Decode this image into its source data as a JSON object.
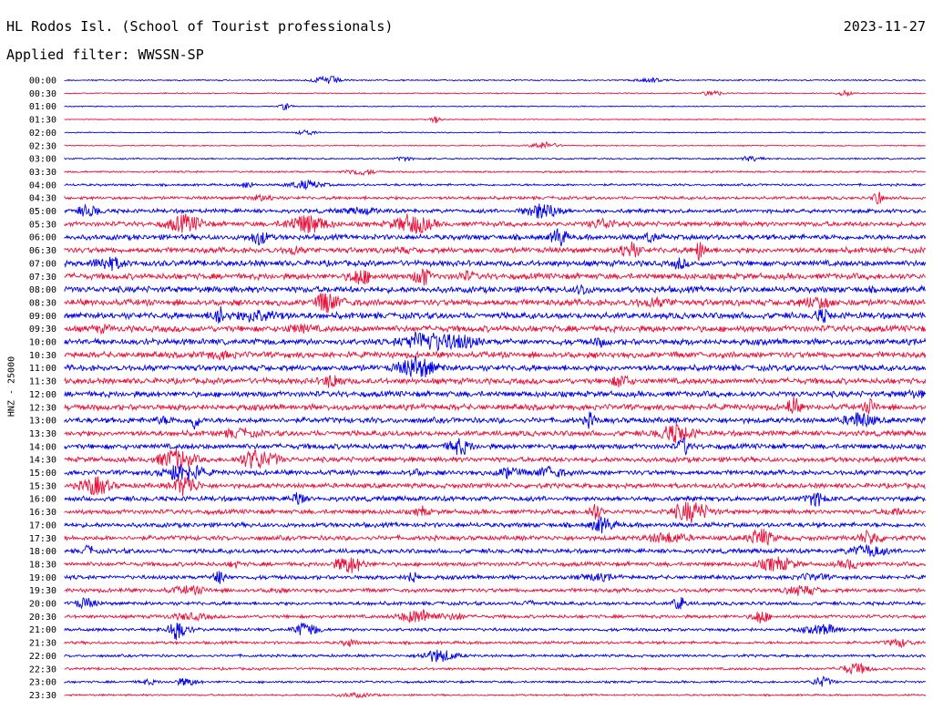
{
  "header": {
    "station_title": "HL Rodos Isl. (School of Tourist professionals)",
    "date": "2023-11-27",
    "filter_text": "Applied filter: WWSSN-SP",
    "channel_label": "HNZ - 25000"
  },
  "chart_data": {
    "type": "helicorder",
    "title": "HL Rodos Isl. (School of Tourist professionals)",
    "date": "2023-11-27",
    "ylabel": "HNZ - 25000",
    "row_labels": [
      "00:00",
      "00:30",
      "01:00",
      "01:30",
      "02:00",
      "02:30",
      "03:00",
      "03:30",
      "04:00",
      "04:30",
      "05:00",
      "05:30",
      "06:00",
      "06:30",
      "07:00",
      "07:30",
      "08:00",
      "08:30",
      "09:00",
      "09:30",
      "10:00",
      "10:30",
      "11:00",
      "11:30",
      "12:00",
      "12:30",
      "13:00",
      "13:30",
      "14:00",
      "14:30",
      "15:00",
      "15:30",
      "16:00",
      "16:30",
      "17:00",
      "17:30",
      "18:00",
      "18:30",
      "19:00",
      "19:30",
      "20:00",
      "20:30",
      "21:00",
      "21:30",
      "22:00",
      "22:30",
      "23:00",
      "23:30"
    ],
    "trace_colors": [
      "#0000e6",
      "#e8123c"
    ],
    "relative_noise_amplitude": [
      0.6,
      0.5,
      0.45,
      0.45,
      0.5,
      0.5,
      0.7,
      0.8,
      1.0,
      1.4,
      1.8,
      2.2,
      2.4,
      2.5,
      2.6,
      2.7,
      2.8,
      2.8,
      2.8,
      2.8,
      2.7,
      2.7,
      2.6,
      2.6,
      2.6,
      2.6,
      2.5,
      2.4,
      2.4,
      2.3,
      2.2,
      2.2,
      2.2,
      2.1,
      2.1,
      2.1,
      2.0,
      1.9,
      1.8,
      1.8,
      1.6,
      1.5,
      1.4,
      1.3,
      1.2,
      1.1,
      1.0,
      0.8
    ]
  }
}
